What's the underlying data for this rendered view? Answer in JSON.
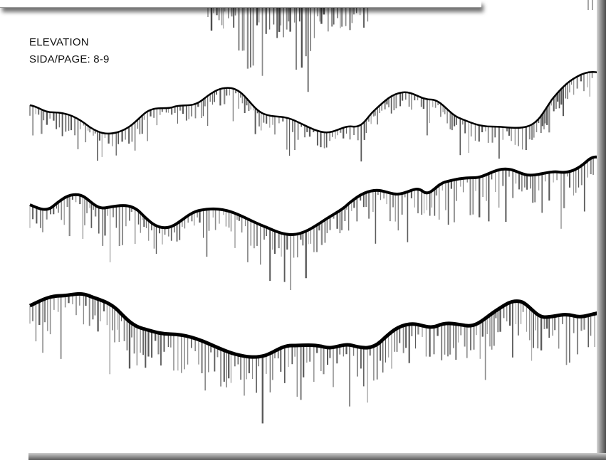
{
  "caption": {
    "title": "ELEVATION",
    "page_ref": "SIDA/PAGE: 8-9"
  },
  "colors": {
    "ink": "#000000",
    "drip": "#6e6e6e",
    "paper": "#ffffff"
  }
}
